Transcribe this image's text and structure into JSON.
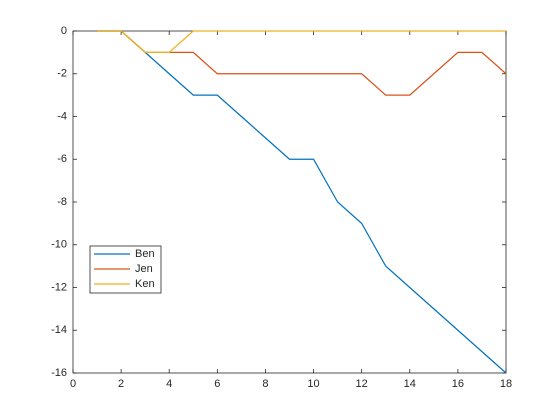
{
  "chart_data": {
    "type": "line",
    "x": [
      1,
      2,
      3,
      4,
      5,
      6,
      7,
      8,
      9,
      10,
      11,
      12,
      13,
      14,
      15,
      16,
      17,
      18
    ],
    "series": [
      {
        "name": "Ben",
        "color": "#0072bd",
        "values": [
          0,
          0,
          -1,
          -2,
          -3,
          -3,
          -4,
          -5,
          -6,
          -6,
          -8,
          -9,
          -11,
          -12,
          -13,
          -14,
          -15,
          -16
        ]
      },
      {
        "name": "Jen",
        "color": "#d95319",
        "values": [
          0,
          0,
          -1,
          -1,
          -1,
          -2,
          -2,
          -2,
          -2,
          -2,
          -2,
          -2,
          -3,
          -3,
          -2,
          -1,
          -1,
          -2
        ]
      },
      {
        "name": "Ken",
        "color": "#edb120",
        "values": [
          0,
          0,
          -1,
          -1,
          0,
          0,
          0,
          0,
          0,
          0,
          0,
          0,
          0,
          0,
          0,
          0,
          0,
          0
        ]
      }
    ],
    "xlim": [
      0,
      18
    ],
    "xticks": [
      0,
      2,
      4,
      6,
      8,
      10,
      12,
      14,
      16,
      18
    ],
    "ylim": [
      -16,
      0
    ],
    "yticks": [
      -16,
      -14,
      -12,
      -10,
      -8,
      -6,
      -4,
      -2,
      0
    ],
    "legend": "southwest"
  }
}
